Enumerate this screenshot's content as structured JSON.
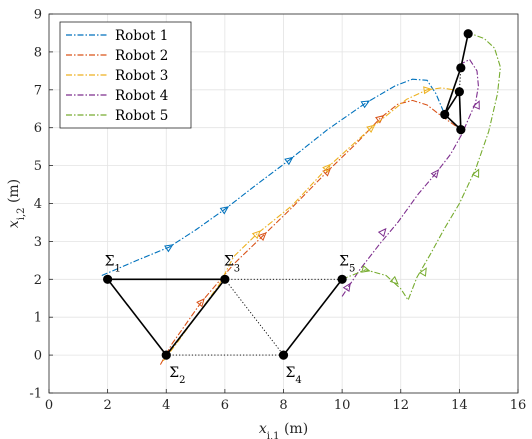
{
  "chart_data": {
    "type": "line",
    "xlabel": "x_{i,1} (m)",
    "ylabel": "x_{i,2} (m)",
    "xlim": [
      0,
      16
    ],
    "ylim": [
      -1,
      9
    ],
    "xticks": [
      0,
      2,
      4,
      6,
      8,
      10,
      12,
      14,
      16
    ],
    "yticks": [
      -1,
      0,
      1,
      2,
      3,
      4,
      5,
      6,
      7,
      8,
      9
    ],
    "grid": true,
    "legend_position": "top-left",
    "series": [
      {
        "name": "Robot 1",
        "color": "#0072BD",
        "points": [
          [
            1.8,
            2.1
          ],
          [
            3.0,
            2.5
          ],
          [
            4.1,
            2.85
          ],
          [
            5.0,
            3.3
          ],
          [
            6.0,
            3.85
          ],
          [
            7.0,
            4.45
          ],
          [
            8.2,
            5.15
          ],
          [
            9.5,
            5.95
          ],
          [
            10.8,
            6.65
          ],
          [
            11.8,
            7.1
          ],
          [
            12.4,
            7.28
          ],
          [
            12.9,
            7.25
          ],
          [
            13.2,
            6.9
          ],
          [
            13.5,
            6.35
          ]
        ],
        "arrows": [
          [
            4.1,
            2.85
          ],
          [
            6.0,
            3.85
          ],
          [
            8.2,
            5.15
          ],
          [
            10.8,
            6.65
          ]
        ]
      },
      {
        "name": "Robot 2",
        "color": "#D95319",
        "points": [
          [
            3.8,
            -0.25
          ],
          [
            4.2,
            0.3
          ],
          [
            5.2,
            1.4
          ],
          [
            6.3,
            2.4
          ],
          [
            7.3,
            3.15
          ],
          [
            8.3,
            3.9
          ],
          [
            9.5,
            4.85
          ],
          [
            10.5,
            5.6
          ],
          [
            11.3,
            6.25
          ],
          [
            11.9,
            6.62
          ],
          [
            12.4,
            6.72
          ],
          [
            12.9,
            6.6
          ],
          [
            13.4,
            6.3
          ],
          [
            14.05,
            5.95
          ]
        ],
        "arrows": [
          [
            5.2,
            1.4
          ],
          [
            7.3,
            3.15
          ],
          [
            9.5,
            4.85
          ],
          [
            11.3,
            6.25
          ]
        ]
      },
      {
        "name": "Robot 3",
        "color": "#EDB120",
        "points": [
          [
            3.9,
            -0.15
          ],
          [
            4.3,
            0.25
          ],
          [
            5.0,
            1.0
          ],
          [
            5.8,
            1.85
          ],
          [
            6.3,
            2.6
          ],
          [
            7.1,
            3.2
          ],
          [
            8.3,
            3.95
          ],
          [
            9.5,
            4.95
          ],
          [
            11.0,
            6.0
          ],
          [
            12.2,
            6.75
          ],
          [
            12.9,
            7.0
          ],
          [
            13.4,
            7.05
          ],
          [
            13.8,
            7.0
          ],
          [
            14.0,
            6.95
          ]
        ],
        "arrows": [
          [
            7.1,
            3.2
          ],
          [
            9.5,
            4.95
          ],
          [
            11.0,
            6.0
          ],
          [
            12.9,
            7.0
          ]
        ]
      },
      {
        "name": "Robot 4",
        "color": "#7E2F8E",
        "points": [
          [
            10.0,
            1.55
          ],
          [
            10.6,
            2.25
          ],
          [
            11.3,
            2.95
          ],
          [
            11.9,
            3.5
          ],
          [
            12.6,
            4.25
          ],
          [
            13.2,
            4.8
          ],
          [
            13.7,
            5.3
          ],
          [
            14.1,
            5.85
          ],
          [
            14.35,
            6.3
          ],
          [
            14.55,
            6.65
          ],
          [
            14.65,
            7.1
          ],
          [
            14.6,
            7.5
          ],
          [
            14.35,
            7.8
          ],
          [
            14.1,
            7.7
          ],
          [
            14.05,
            7.58
          ]
        ],
        "arrows": [
          [
            10.2,
            1.8
          ],
          [
            11.4,
            3.25
          ],
          [
            13.2,
            4.8
          ],
          [
            14.62,
            6.6
          ]
        ]
      },
      {
        "name": "Robot 5",
        "color": "#77AC30",
        "points": [
          [
            10.0,
            2.0
          ],
          [
            10.8,
            2.25
          ],
          [
            11.5,
            2.1
          ],
          [
            12.0,
            1.75
          ],
          [
            12.25,
            1.45
          ],
          [
            12.55,
            2.05
          ],
          [
            13.0,
            2.65
          ],
          [
            13.5,
            3.35
          ],
          [
            14.0,
            4.0
          ],
          [
            14.55,
            4.9
          ],
          [
            15.0,
            5.9
          ],
          [
            15.3,
            6.9
          ],
          [
            15.4,
            7.6
          ],
          [
            15.2,
            8.1
          ],
          [
            14.85,
            8.35
          ],
          [
            14.5,
            8.45
          ],
          [
            14.3,
            8.48
          ]
        ],
        "arrows": [
          [
            10.8,
            2.25
          ],
          [
            11.8,
            1.95
          ],
          [
            12.8,
            2.2
          ],
          [
            14.6,
            4.8
          ]
        ]
      }
    ],
    "formation": {
      "initial": {
        "nodes": [
          {
            "name": "Σ1",
            "x": 2,
            "y": 2
          },
          {
            "name": "Σ2",
            "x": 4,
            "y": 0
          },
          {
            "name": "Σ3",
            "x": 6,
            "y": 2
          },
          {
            "name": "Σ4",
            "x": 8,
            "y": 0
          },
          {
            "name": "Σ5",
            "x": 10,
            "y": 2
          }
        ],
        "solid_edges": [
          [
            0,
            1
          ],
          [
            0,
            2
          ],
          [
            1,
            2
          ],
          [
            3,
            4
          ]
        ],
        "dotted_edges": [
          [
            2,
            4
          ],
          [
            1,
            3
          ],
          [
            2,
            3
          ]
        ]
      },
      "final": {
        "nodes": [
          [
            14.3,
            8.48
          ],
          [
            14.05,
            7.58
          ],
          [
            14.0,
            6.95
          ],
          [
            13.5,
            6.35
          ],
          [
            14.05,
            5.95
          ]
        ],
        "solid_edges": [
          [
            0,
            1
          ],
          [
            1,
            3
          ],
          [
            2,
            3
          ],
          [
            3,
            4
          ],
          [
            2,
            4
          ]
        ],
        "dotted_edges": [
          [
            1,
            2
          ]
        ]
      }
    }
  }
}
